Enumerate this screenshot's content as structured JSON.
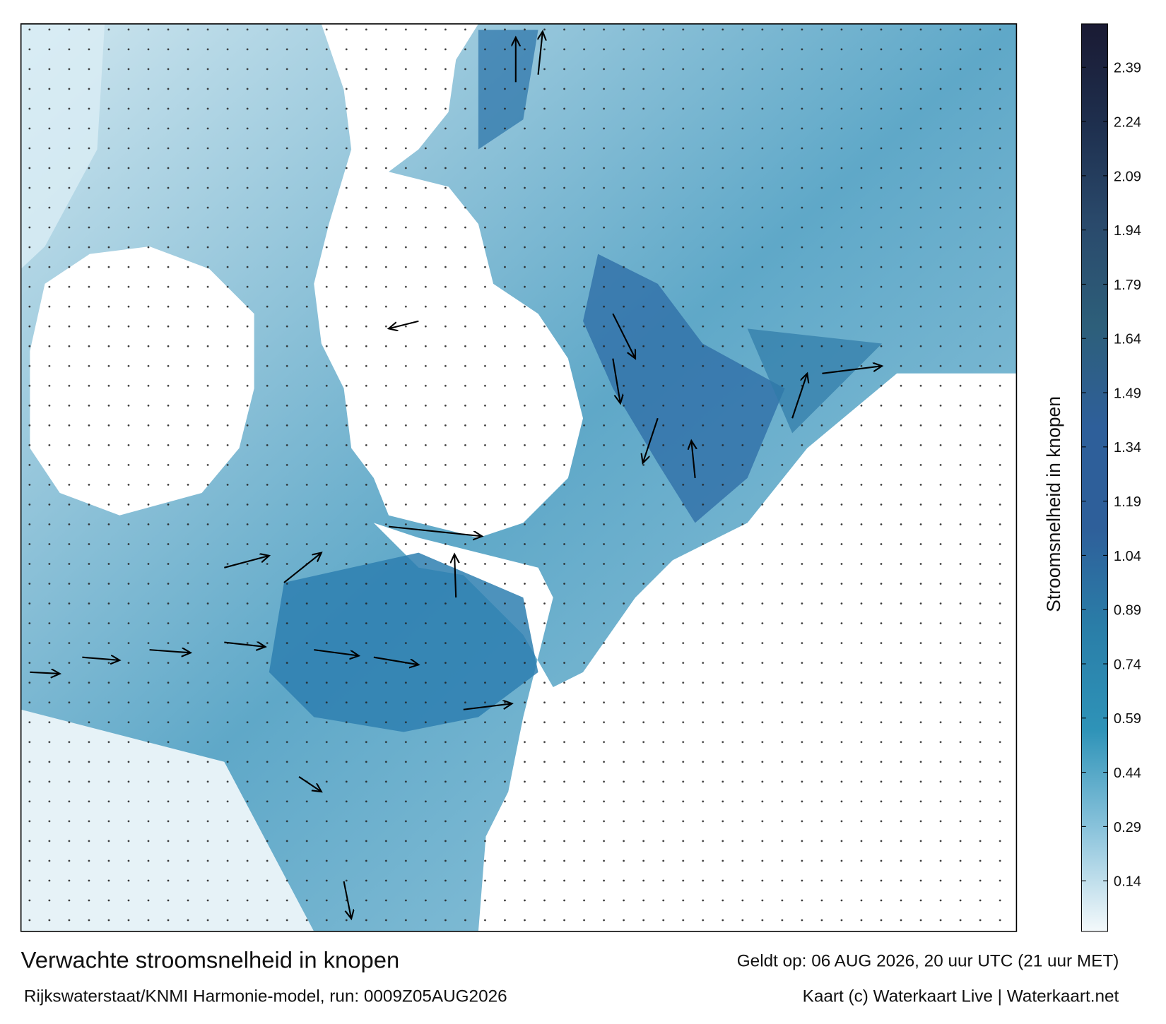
{
  "title": "Verwachte stroomsnelheid in knopen",
  "subtitle": "Rijkswaterstaat/KNMI Harmonie-model, run: 0009Z05AUG2026",
  "valid_time": "Geldt op: 06 AUG 2026, 20 uur UTC (21 uur MET)",
  "credit": "Kaart (c) Waterkaart Live | Waterkaart.net",
  "colorbar": {
    "label": "Stroomsnelheid in knopen",
    "range": [
      0,
      2.51
    ],
    "ticks": [
      0.14,
      0.29,
      0.44,
      0.59,
      0.74,
      0.89,
      1.04,
      1.19,
      1.34,
      1.49,
      1.64,
      1.79,
      1.94,
      2.09,
      2.24,
      2.39
    ],
    "colors": [
      "#f4f9fb",
      "#8cc4dc",
      "#2e93b8",
      "#2a7ea8",
      "#2e5f9a",
      "#2e5f9a",
      "#2d5f7a",
      "#2a4a6c",
      "#1e2f4e",
      "#1a1a33"
    ]
  }
}
